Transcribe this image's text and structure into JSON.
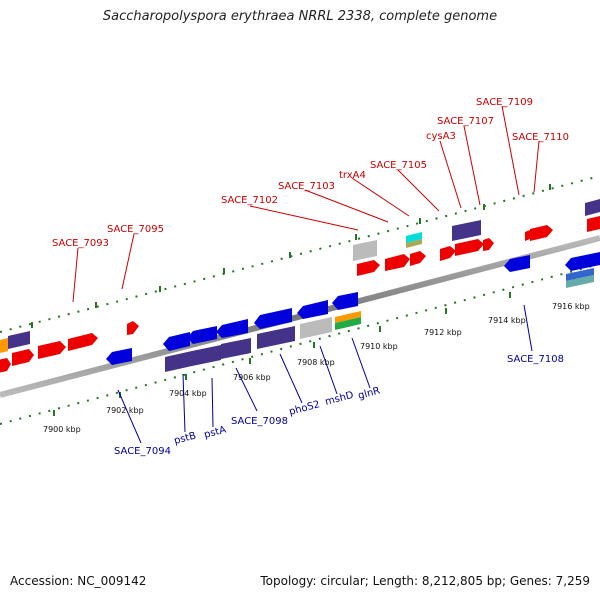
{
  "title": "Saccharopolyspora erythraea NRRL 2338, complete genome",
  "footer": {
    "accession": "Accession: NC_009142",
    "info": "Topology: circular; Length: 8,212,805 bp; Genes: 7,259"
  },
  "colors": {
    "forward_gene": "#ee0000",
    "reverse_gene": "#0000dd",
    "operon_gene": "#443388",
    "grey_gene": "#bbbbbb",
    "backbone": "#999999",
    "tick": "#227722",
    "top_label": "#cc0000",
    "bottom_label": "#000099"
  },
  "scale_ticks": [
    {
      "label": "7900 kbp",
      "kbp": 7900
    },
    {
      "label": "7902 kbp",
      "kbp": 7902
    },
    {
      "label": "7904 kbp",
      "kbp": 7904
    },
    {
      "label": "7906 kbp",
      "kbp": 7906
    },
    {
      "label": "7908 kbp",
      "kbp": 7908
    },
    {
      "label": "7910 kbp",
      "kbp": 7910
    },
    {
      "label": "7912 kbp",
      "kbp": 7912
    },
    {
      "label": "7914 kbp",
      "kbp": 7914
    },
    {
      "label": "7916 kbp",
      "kbp": 7916
    }
  ],
  "top_labels": [
    "SACE_7093",
    "SACE_7095",
    "SACE_7102",
    "SACE_7103",
    "trxA4",
    "SACE_7105",
    "cysA3",
    "SACE_7107",
    "SACE_7109",
    "SACE_7110"
  ],
  "bottom_labels": [
    "SACE_7094",
    "pstB",
    "pstA",
    "SACE_7098",
    "phoS2",
    "mshD",
    "glnR",
    "SACE_7108"
  ]
}
